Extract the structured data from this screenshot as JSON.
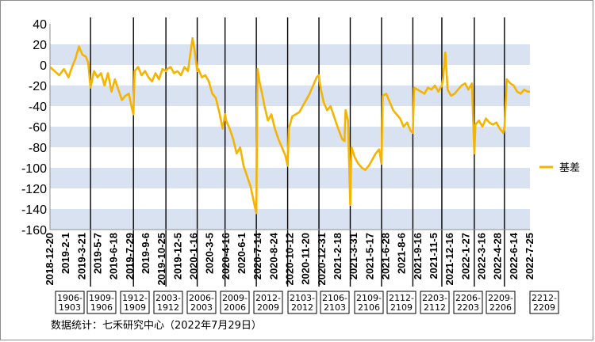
{
  "chart_data": {
    "type": "line",
    "title": "",
    "xlabel": "",
    "ylabel": "",
    "ylim": [
      -160,
      40
    ],
    "y_ticks": [
      40,
      20,
      0,
      -20,
      -40,
      -60,
      -80,
      -100,
      -120,
      -140,
      -160
    ],
    "grid": "alternating horizontal bands",
    "legend_position": "right",
    "x_tick_labels": [
      "2018-12-20",
      "2019-2-1",
      "2019-3-21",
      "2019-5-7",
      "2019-6-18",
      "2019-7-29",
      "2019-9-6",
      "2019-10-25",
      "2019-12-5",
      "2020-1-16",
      "2020-3-5",
      "2020-4-16",
      "2020-6-1",
      "2020-7-14",
      "2020-8-24",
      "2020-10-12",
      "2020-11-20",
      "2020-12-31",
      "2021-2-18",
      "2021-3-31",
      "2021-5-17",
      "2021-6-28",
      "2021-8-6",
      "2021-9-16",
      "2021-11-5",
      "2021-12-16",
      "2022-1-27",
      "2022-3-16",
      "2022-4-28",
      "2022-6-14",
      "2022-7-25"
    ],
    "series": [
      {
        "name": "基差",
        "color": "#f5b400",
        "points": [
          [
            0,
            -2
          ],
          [
            4,
            -6
          ],
          [
            8,
            -10
          ],
          [
            12,
            -4
          ],
          [
            16,
            -12
          ],
          [
            19,
            -2
          ],
          [
            22,
            6
          ],
          [
            25,
            18
          ],
          [
            28,
            10
          ],
          [
            31,
            8
          ],
          [
            33,
            2
          ],
          [
            35,
            -22
          ],
          [
            38,
            -6
          ],
          [
            41,
            -12
          ],
          [
            44,
            -8
          ],
          [
            47,
            -20
          ],
          [
            50,
            -8
          ],
          [
            53,
            -26
          ],
          [
            56,
            -14
          ],
          [
            59,
            -24
          ],
          [
            62,
            -34
          ],
          [
            65,
            -30
          ],
          [
            68,
            -28
          ],
          [
            71,
            -44
          ],
          [
            72,
            -48
          ],
          [
            73,
            -6
          ],
          [
            76,
            -2
          ],
          [
            79,
            -10
          ],
          [
            82,
            -6
          ],
          [
            85,
            -12
          ],
          [
            88,
            -16
          ],
          [
            91,
            -8
          ],
          [
            94,
            -14
          ],
          [
            97,
            -4
          ],
          [
            100,
            -6
          ],
          [
            101,
            -4
          ],
          [
            104,
            -2
          ],
          [
            107,
            -8
          ],
          [
            110,
            -6
          ],
          [
            113,
            -10
          ],
          [
            116,
            -2
          ],
          [
            119,
            -6
          ],
          [
            121,
            10
          ],
          [
            123,
            26
          ],
          [
            125,
            12
          ],
          [
            127,
            -6
          ],
          [
            128,
            -4
          ],
          [
            131,
            -12
          ],
          [
            134,
            -10
          ],
          [
            137,
            -16
          ],
          [
            140,
            -28
          ],
          [
            143,
            -32
          ],
          [
            146,
            -46
          ],
          [
            149,
            -62
          ],
          [
            151,
            -48
          ],
          [
            152,
            -54
          ],
          [
            155,
            -62
          ],
          [
            158,
            -72
          ],
          [
            161,
            -86
          ],
          [
            164,
            -80
          ],
          [
            167,
            -98
          ],
          [
            170,
            -108
          ],
          [
            173,
            -118
          ],
          [
            176,
            -134
          ],
          [
            178,
            -144
          ],
          [
            179,
            -4
          ],
          [
            181,
            -18
          ],
          [
            183,
            -28
          ],
          [
            185,
            -40
          ],
          [
            188,
            -54
          ],
          [
            191,
            -48
          ],
          [
            194,
            -62
          ],
          [
            197,
            -72
          ],
          [
            200,
            -80
          ],
          [
            203,
            -88
          ],
          [
            205,
            -98
          ],
          [
            206,
            -62
          ],
          [
            209,
            -50
          ],
          [
            212,
            -48
          ],
          [
            215,
            -46
          ],
          [
            218,
            -40
          ],
          [
            221,
            -34
          ],
          [
            224,
            -28
          ],
          [
            227,
            -20
          ],
          [
            230,
            -12
          ],
          [
            232,
            -10
          ],
          [
            233,
            -20
          ],
          [
            236,
            -36
          ],
          [
            239,
            -44
          ],
          [
            242,
            -40
          ],
          [
            245,
            -50
          ],
          [
            248,
            -60
          ],
          [
            250,
            -66
          ],
          [
            252,
            -72
          ],
          [
            254,
            -74
          ],
          [
            255,
            -44
          ],
          [
            257,
            -54
          ],
          [
            259,
            -136
          ],
          [
            260,
            -80
          ],
          [
            263,
            -90
          ],
          [
            266,
            -96
          ],
          [
            269,
            -100
          ],
          [
            272,
            -102
          ],
          [
            275,
            -98
          ],
          [
            278,
            -92
          ],
          [
            281,
            -86
          ],
          [
            284,
            -82
          ],
          [
            286,
            -96
          ],
          [
            287,
            -30
          ],
          [
            290,
            -28
          ],
          [
            293,
            -36
          ],
          [
            296,
            -44
          ],
          [
            299,
            -48
          ],
          [
            302,
            -52
          ],
          [
            305,
            -60
          ],
          [
            308,
            -56
          ],
          [
            311,
            -64
          ],
          [
            313,
            -66
          ],
          [
            314,
            -22
          ],
          [
            317,
            -24
          ],
          [
            320,
            -26
          ],
          [
            323,
            -28
          ],
          [
            326,
            -22
          ],
          [
            329,
            -24
          ],
          [
            332,
            -20
          ],
          [
            335,
            -26
          ],
          [
            338,
            -20
          ],
          [
            339,
            -14
          ],
          [
            341,
            12
          ],
          [
            343,
            -24
          ],
          [
            346,
            -30
          ],
          [
            349,
            -28
          ],
          [
            352,
            -24
          ],
          [
            355,
            -20
          ],
          [
            358,
            -18
          ],
          [
            361,
            -24
          ],
          [
            364,
            -18
          ],
          [
            366,
            -86
          ],
          [
            367,
            -58
          ],
          [
            370,
            -54
          ],
          [
            373,
            -60
          ],
          [
            376,
            -52
          ],
          [
            379,
            -56
          ],
          [
            382,
            -58
          ],
          [
            385,
            -56
          ],
          [
            388,
            -62
          ],
          [
            391,
            -66
          ],
          [
            392,
            -60
          ],
          [
            394,
            -14
          ],
          [
            397,
            -18
          ],
          [
            400,
            -20
          ],
          [
            403,
            -26
          ],
          [
            406,
            -28
          ],
          [
            409,
            -24
          ],
          [
            412,
            -26
          ],
          [
            414,
            -26
          ]
        ]
      }
    ],
    "x_max": 414,
    "contract_boxes": [
      "1906-\n1903",
      "1909-\n1906",
      "1912-\n1909",
      "2003-\n1912",
      "2006-\n2003",
      "2009-\n2006",
      "2012-\n2009",
      "2103-\n2012",
      "2106-\n2103",
      "2109-\n2106",
      "2112-\n2109",
      "2203-\n2112",
      "2206-\n2203",
      "2209-\n2206",
      "2212-\n2209"
    ],
    "switch_points": [
      35,
      72,
      100,
      127,
      151,
      178,
      205,
      232,
      259,
      286,
      313,
      338,
      366,
      392
    ]
  },
  "footer": {
    "source": "数据统计：七禾研究中心（2022年7月29日）"
  },
  "colors": {
    "line": "#f5b400",
    "band": "#d9e2f1",
    "rule": "#000000",
    "axis": "#8c8c8c"
  }
}
